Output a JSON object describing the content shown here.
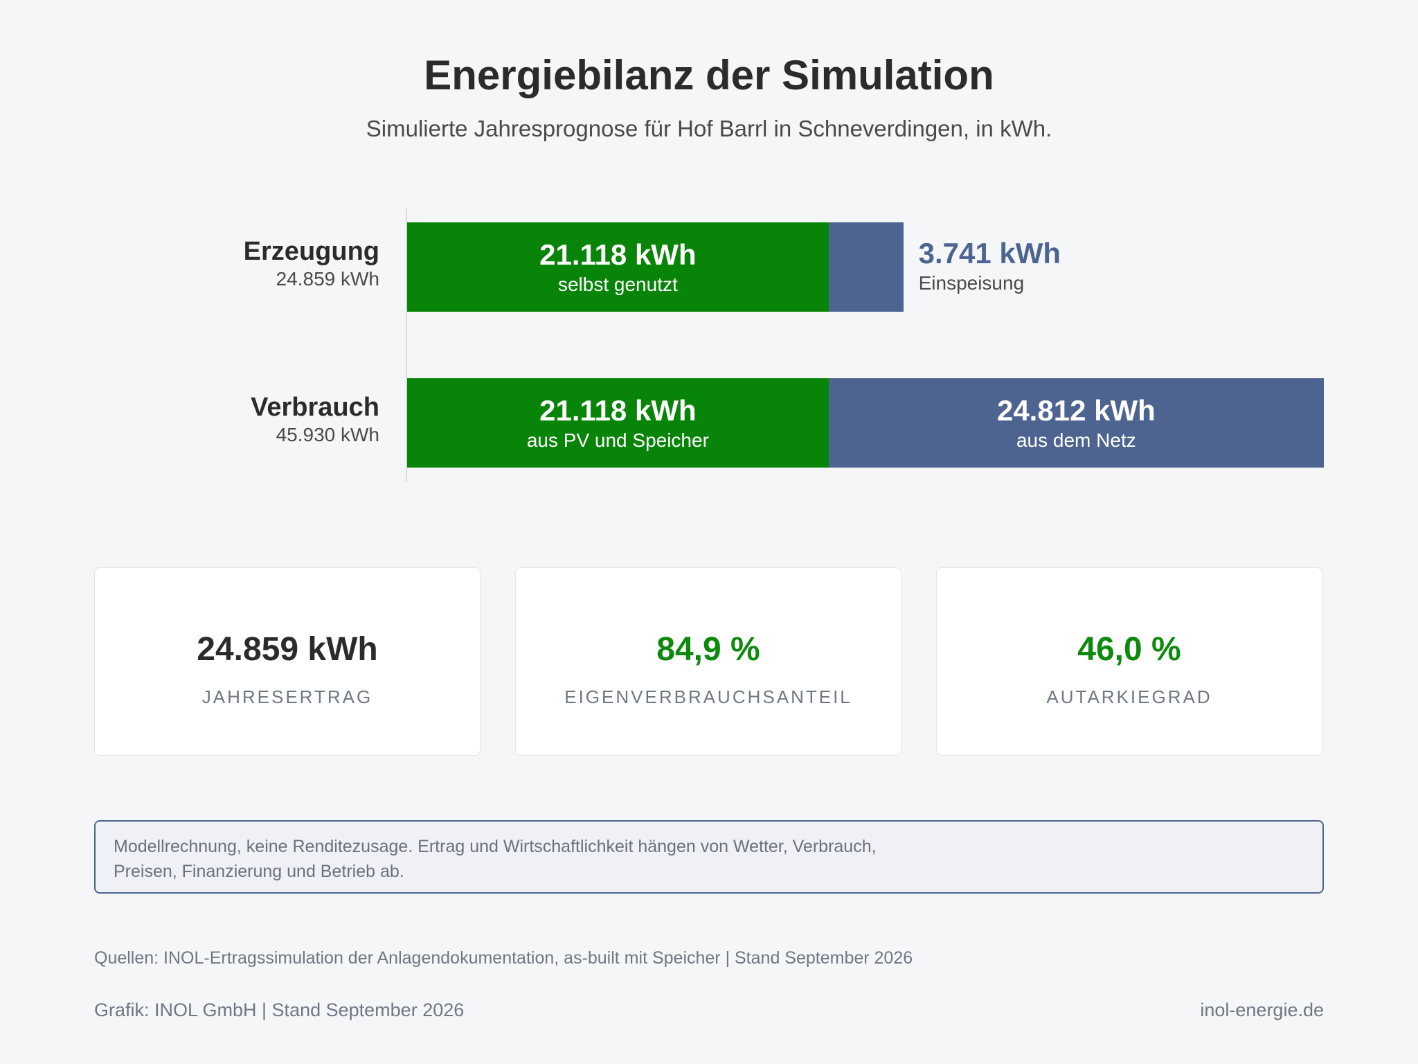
{
  "title": "Energiebilanz der Simulation",
  "subtitle": "Simulierte Jahresprognose für Hof Barrl in Schneverdingen, in kWh.",
  "colors": {
    "self_use": "#088408",
    "grid": "#4d6490",
    "accent_green": "#0d8a0d"
  },
  "chart_data": {
    "type": "bar",
    "orientation": "horizontal",
    "stacked": true,
    "categories": [
      "Erzeugung",
      "Verbrauch"
    ],
    "category_totals": [
      "24.859 kWh",
      "45.930 kWh"
    ],
    "series": [
      {
        "name": "",
        "values": [
          21118,
          21118
        ],
        "value_labels": [
          "21.118 kWh",
          "21.118 kWh"
        ],
        "segment_labels": [
          "selbst genutzt",
          "aus PV und Speicher"
        ]
      },
      {
        "name": "",
        "values": [
          3741,
          24812
        ],
        "value_labels": [
          "3.741 kWh",
          "24.812 kWh"
        ],
        "segment_labels": [
          "Einspeisung",
          "aus dem Netz"
        ]
      }
    ],
    "xlim": [
      0,
      45930
    ],
    "grid": false
  },
  "kpis": [
    {
      "value": "24.859 kWh",
      "label": "JAHRESERTRAG"
    },
    {
      "value": "84,9 %",
      "label": "EIGENVERBRAUCHSANTEIL"
    },
    {
      "value": "46,0 %",
      "label": "AUTARKIEGRAD"
    }
  ],
  "note": "Modellrechnung, keine Renditezusage. Ertrag und Wirtschaftlichkeit hängen von Wetter, Verbrauch, Preisen, Finanzierung und Betrieb ab.",
  "sources": "Quellen: INOL-Ertragssimulation der Anlagendokumentation, as-built mit Speicher | Stand September 2026",
  "footer": {
    "credit": "Grafik: INOL GmbH | Stand September 2026",
    "website": "inol-energie.de"
  }
}
